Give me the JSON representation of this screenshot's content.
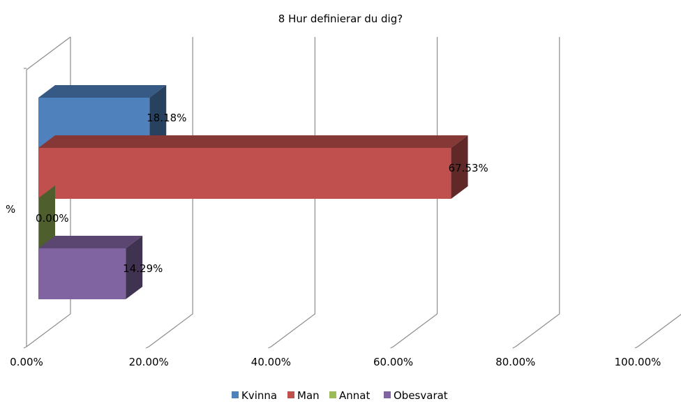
{
  "chart_data": {
    "type": "bar",
    "orientation": "horizontal",
    "three_d": true,
    "title": "8 Hur definierar du dig?",
    "category_label": "%",
    "series": [
      {
        "name": "Kvinna",
        "value": 18.18,
        "label": "18.18%",
        "color": "#4f81bd"
      },
      {
        "name": "Man",
        "value": 67.53,
        "label": "67.53%",
        "color": "#c0504d"
      },
      {
        "name": "Annat",
        "value": 0.0,
        "label": "0.00%",
        "color": "#9bbb59"
      },
      {
        "name": "Obesvarat",
        "value": 14.29,
        "label": "14.29%",
        "color": "#8064a2"
      }
    ],
    "xlim": [
      0,
      100
    ],
    "xticks": [
      0,
      20,
      40,
      60,
      80,
      100
    ],
    "xtick_labels": [
      "0.00%",
      "20.00%",
      "40.00%",
      "60.00%",
      "80.00%",
      "100.00%"
    ],
    "grid": true,
    "legend_position": "bottom"
  }
}
